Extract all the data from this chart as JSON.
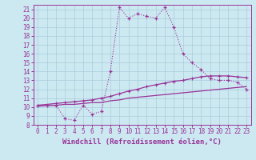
{
  "background_color": "#cce8f0",
  "grid_color": "#aaccdd",
  "line_color": "#993399",
  "xlabel": "Windchill (Refroidissement éolien,°C)",
  "xlim": [
    -0.5,
    23.5
  ],
  "ylim": [
    8,
    21.5
  ],
  "xticks": [
    0,
    1,
    2,
    3,
    4,
    5,
    6,
    7,
    8,
    9,
    10,
    11,
    12,
    13,
    14,
    15,
    16,
    17,
    18,
    19,
    20,
    21,
    22,
    23
  ],
  "yticks": [
    8,
    9,
    10,
    11,
    12,
    13,
    14,
    15,
    16,
    17,
    18,
    19,
    20,
    21
  ],
  "line1_x": [
    0,
    1,
    2,
    3,
    4,
    5,
    6,
    7,
    8,
    9,
    10,
    11,
    12,
    13,
    14,
    15,
    16,
    17,
    18,
    19,
    20,
    21,
    22,
    23
  ],
  "line1_y": [
    10.2,
    10.2,
    10.2,
    8.7,
    8.5,
    10.2,
    9.2,
    9.5,
    14.0,
    21.2,
    20.0,
    20.5,
    20.2,
    20.0,
    21.2,
    19.0,
    16.0,
    15.0,
    14.2,
    13.2,
    13.0,
    13.0,
    12.8,
    12.0
  ],
  "line2_x": [
    0,
    2,
    3,
    4,
    5,
    6,
    7,
    8,
    9,
    10,
    11,
    12,
    13,
    14,
    15,
    16,
    17,
    18,
    19,
    20,
    21,
    22,
    23
  ],
  "line2_y": [
    10.2,
    10.4,
    10.5,
    10.6,
    10.7,
    10.8,
    11.0,
    11.2,
    11.5,
    11.8,
    12.0,
    12.3,
    12.5,
    12.7,
    12.9,
    13.0,
    13.2,
    13.4,
    13.5,
    13.5,
    13.5,
    13.4,
    13.3
  ],
  "line3_x": [
    0,
    2,
    3,
    4,
    5,
    6,
    7,
    8,
    9,
    10,
    11,
    12,
    13,
    14,
    15,
    16,
    17,
    18,
    19,
    20,
    21,
    22,
    23
  ],
  "line3_y": [
    10.1,
    10.2,
    10.3,
    10.3,
    10.4,
    10.5,
    10.5,
    10.7,
    10.8,
    11.0,
    11.1,
    11.2,
    11.3,
    11.4,
    11.5,
    11.6,
    11.7,
    11.8,
    11.9,
    12.0,
    12.1,
    12.2,
    12.3
  ],
  "tick_fontsize": 5.5,
  "xlabel_fontsize": 6.5
}
